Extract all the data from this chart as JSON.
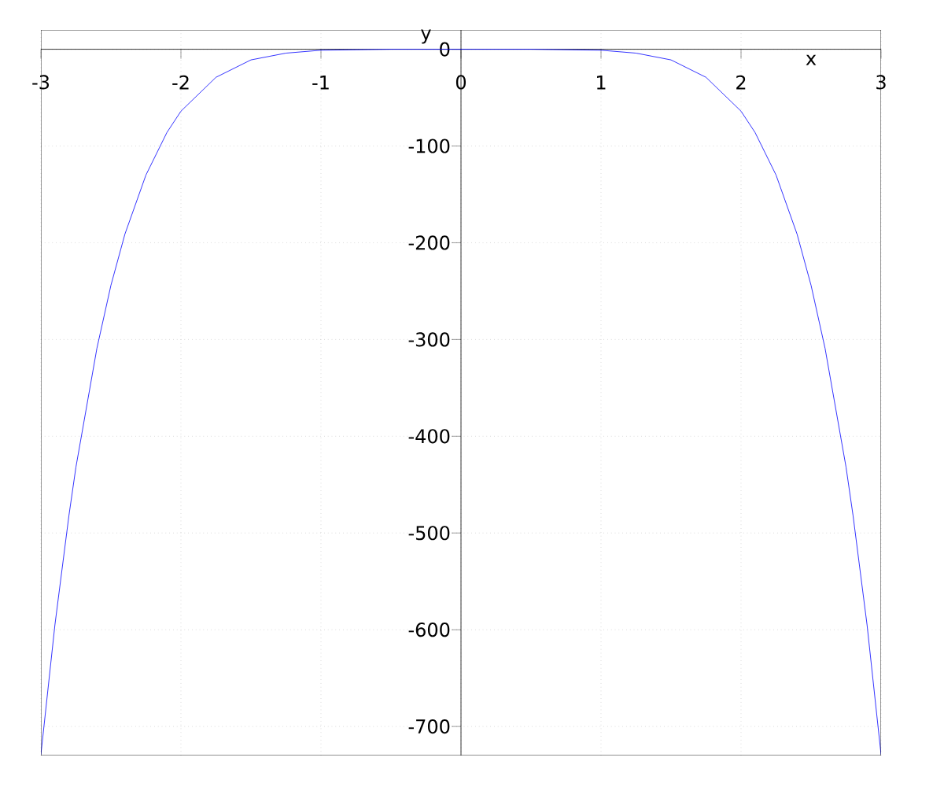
{
  "chart_data": {
    "type": "line",
    "xlabel": "x",
    "ylabel": "y",
    "x": [
      -3,
      -2.9,
      -2.8,
      -2.75,
      -2.6,
      -2.5,
      -2.4,
      -2.25,
      -2.1,
      -2,
      -1.75,
      -1.5,
      -1.25,
      -1,
      -0.5,
      0.5,
      1,
      1.25,
      1.5,
      1.75,
      2,
      2.1,
      2.25,
      2.4,
      2.5,
      2.6,
      2.75,
      2.8,
      2.9,
      3
    ],
    "series": [
      {
        "color": "#0000ff",
        "values": [
          -729,
          -595,
          -482,
          -432,
          -309,
          -244,
          -191,
          -130,
          -86,
          -64,
          -29,
          -11,
          -4,
          -1,
          0,
          0,
          -1,
          -4,
          -11,
          -29,
          -64,
          -86,
          -130,
          -191,
          -244,
          -309,
          -432,
          -482,
          -595,
          -729
        ]
      }
    ],
    "xlim": [
      -3,
      3
    ],
    "ylim": [
      -730,
      20
    ],
    "xticks": [
      -3,
      -2,
      -1,
      0,
      1,
      2,
      3
    ],
    "yticks": [
      -700,
      -600,
      -500,
      -400,
      -300,
      -200,
      -100,
      0
    ],
    "grid": true,
    "marker": "none",
    "line_style": "solid"
  }
}
